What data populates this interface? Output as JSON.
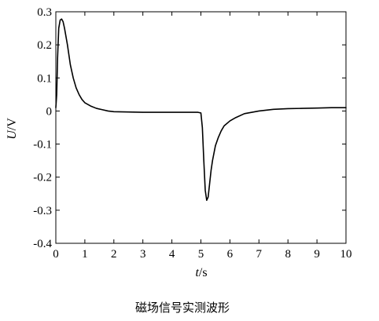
{
  "chart_data": {
    "type": "line",
    "title": "",
    "caption": "磁场信号实测波形",
    "xlabel": {
      "italic": "t",
      "rest": "/s"
    },
    "ylabel": {
      "italic": "U",
      "rest": "/V"
    },
    "xlim": [
      0,
      10
    ],
    "ylim": [
      -0.4,
      0.3
    ],
    "xticks": [
      0,
      1,
      2,
      3,
      4,
      5,
      6,
      7,
      8,
      9,
      10
    ],
    "xtick_labels": [
      "0",
      "1",
      "2",
      "3",
      "4",
      "5",
      "6",
      "7",
      "8",
      "9",
      "10"
    ],
    "yticks": [
      -0.4,
      -0.3,
      -0.2,
      -0.1,
      0,
      0.1,
      0.2,
      0.3
    ],
    "ytick_labels": [
      "-0.4",
      "-0.3",
      "-0.2",
      "-0.1",
      "0",
      "0.1",
      "0.2",
      "0.3"
    ],
    "grid": false,
    "line_color": "#000000",
    "series": [
      {
        "x": [
          0,
          0.03,
          0.06,
          0.1,
          0.15,
          0.2,
          0.25,
          0.3,
          0.4,
          0.5,
          0.6,
          0.7,
          0.8,
          0.9,
          1.0,
          1.2,
          1.4,
          1.6,
          1.8,
          2.0,
          2.5,
          3.0,
          3.5,
          4.0,
          4.5,
          4.9,
          5.0,
          5.05,
          5.1,
          5.15,
          5.2,
          5.25,
          5.3,
          5.35,
          5.4,
          5.5,
          5.6,
          5.7,
          5.8,
          6.0,
          6.2,
          6.5,
          7.0,
          7.5,
          8.0,
          8.5,
          9.0,
          9.5,
          10.0
        ],
        "y": [
          0.01,
          0.05,
          0.16,
          0.25,
          0.275,
          0.278,
          0.27,
          0.25,
          0.2,
          0.14,
          0.1,
          0.07,
          0.05,
          0.035,
          0.025,
          0.015,
          0.008,
          0.004,
          0.0,
          -0.002,
          -0.003,
          -0.004,
          -0.004,
          -0.004,
          -0.004,
          -0.004,
          -0.006,
          -0.05,
          -0.15,
          -0.24,
          -0.27,
          -0.26,
          -0.22,
          -0.18,
          -0.15,
          -0.105,
          -0.08,
          -0.06,
          -0.045,
          -0.03,
          -0.02,
          -0.008,
          0.0,
          0.005,
          0.007,
          0.008,
          0.009,
          0.01,
          0.01
        ]
      }
    ]
  }
}
